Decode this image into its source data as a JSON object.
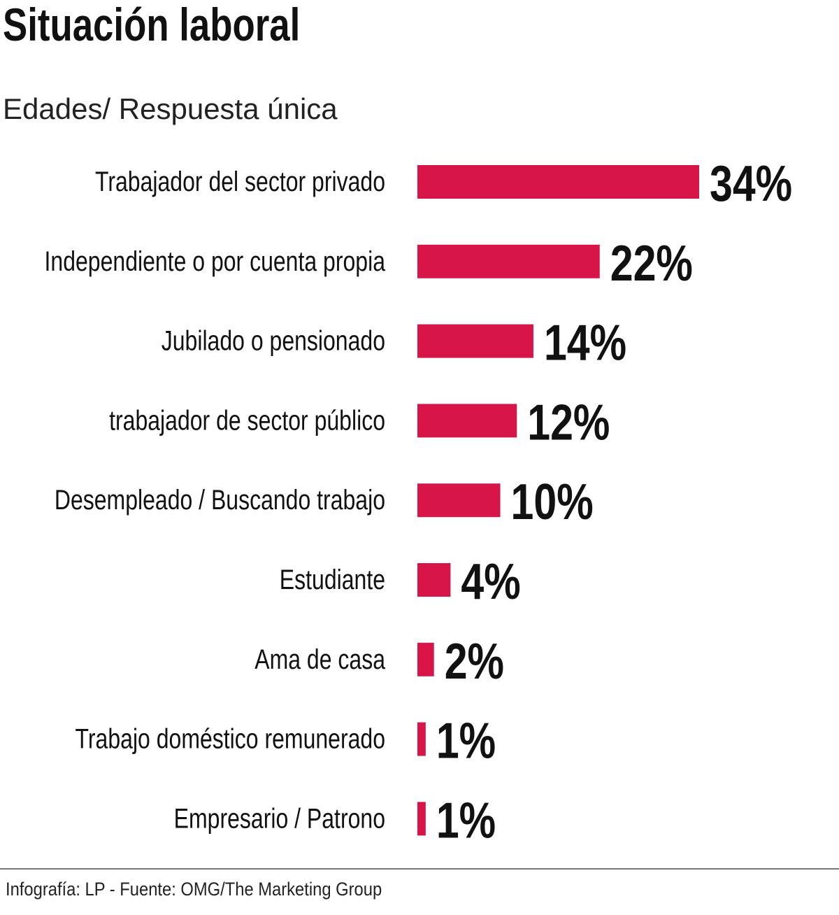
{
  "chart_data": {
    "type": "bar",
    "orientation": "horizontal",
    "title": "Situación laboral",
    "subtitle": "Edades/ Respuesta única",
    "categories": [
      "Trabajador del sector privado",
      "Independiente o por cuenta propia",
      "Jubilado o pensionado",
      "trabajador de sector público",
      "Desempleado / Buscando trabajo",
      "Estudiante",
      "Ama de casa",
      "Trabajo doméstico remunerado",
      "Empresario / Patrono"
    ],
    "values": [
      34,
      22,
      14,
      12,
      10,
      4,
      2,
      1,
      1
    ],
    "value_labels": [
      "34%",
      "22%",
      "14%",
      "12%",
      "10%",
      "4%",
      "2%",
      "1%",
      "1%"
    ],
    "unit": "%",
    "xlim": [
      0,
      34
    ],
    "grid": false,
    "legend": "none",
    "bar_color": "#d81548",
    "source": "Infografía: LP - Fuente: OMG/The Marketing Group"
  }
}
